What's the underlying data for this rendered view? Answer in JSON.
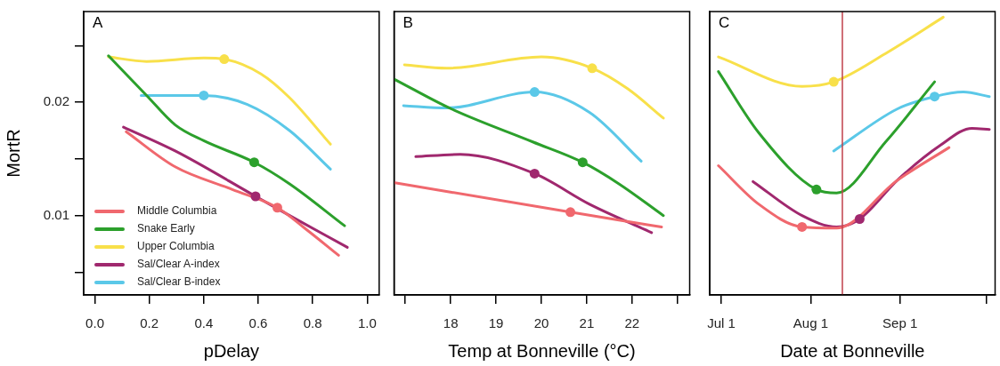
{
  "chart_data": [
    {
      "type": "line",
      "title": "A",
      "xlabel": "pDelay",
      "ylabel": "MortR",
      "xlim": [
        -0.041,
        1.044
      ],
      "xticks": [
        {
          "value": 0,
          "label": "0.0"
        },
        0.2,
        0.4,
        0.6,
        0.8,
        {
          "value": 1,
          "label": "1.0"
        }
      ],
      "ylim": [
        0.003,
        0.028
      ],
      "yticks": [
        {
          "value": 0.005,
          "label": null
        },
        0.01,
        {
          "value": 0.015,
          "label": null
        },
        0.02,
        {
          "value": 0.025,
          "label": null
        }
      ],
      "legend": "bottom left",
      "series": [
        {
          "name": "Middle Columbia",
          "color": "#f0686e",
          "x": [
            0.115,
            0.295,
            0.505,
            0.67,
            0.77,
            0.895
          ],
          "values": [
            0.0174,
            0.0143,
            0.0123,
            0.0107,
            0.0089,
            0.0065
          ]
        },
        {
          "name": "Snake Early",
          "color": "#2ca02c",
          "x": [
            0.05,
            0.19,
            0.295,
            0.4,
            0.585,
            0.715,
            0.917
          ],
          "values": [
            0.0241,
            0.0206,
            0.018,
            0.0166,
            0.0147,
            0.0128,
            0.0091
          ]
        },
        {
          "name": "Upper Columbia",
          "color": "#f8e04a",
          "x": [
            0.05,
            0.19,
            0.4,
            0.475,
            0.61,
            0.715,
            0.865
          ],
          "values": [
            0.024,
            0.0236,
            0.0239,
            0.0238,
            0.0225,
            0.0204,
            0.0163
          ]
        },
        {
          "name": "Sal/Clear A-index",
          "color": "#a0286e",
          "x": [
            0.105,
            0.295,
            0.59,
            0.715,
            0.927
          ],
          "values": [
            0.0178,
            0.0157,
            0.0117,
            0.01,
            0.0072
          ]
        },
        {
          "name": "Sal/Clear B-index",
          "color": "#5bc8e8",
          "x": [
            0.17,
            0.4,
            0.56,
            0.715,
            0.865
          ],
          "values": [
            0.0206,
            0.0206,
            0.0198,
            0.0175,
            0.0141
          ]
        },
        {
          "type": "scatter",
          "color": "#f0686e",
          "x": [
            0.67
          ],
          "values": [
            0.0107
          ]
        },
        {
          "type": "scatter",
          "color": "#2ca02c",
          "x": [
            0.585
          ],
          "values": [
            0.0147
          ]
        },
        {
          "type": "scatter",
          "color": "#f8e04a",
          "x": [
            0.475
          ],
          "values": [
            0.0238
          ]
        },
        {
          "type": "scatter",
          "color": "#a0286e",
          "x": [
            0.59
          ],
          "values": [
            0.0117
          ]
        },
        {
          "type": "scatter",
          "color": "#5bc8e8",
          "x": [
            0.4
          ],
          "values": [
            0.0206
          ]
        }
      ]
    },
    {
      "type": "line",
      "title": "B",
      "xlabel": "Temp at Bonneville (°C)",
      "xlim": [
        16.75,
        23.27
      ],
      "xticks": [
        {
          "value": 17,
          "label": null
        },
        18,
        19,
        20,
        21,
        22,
        {
          "value": 23,
          "label": null
        }
      ],
      "ylim": [
        0.003,
        0.028
      ],
      "tick_labels": "x",
      "series": [
        {
          "color": "#f0686e",
          "x": [
            16.77,
            20.64,
            21.71,
            22.65
          ],
          "values": [
            0.0129,
            0.0103,
            0.0096,
            0.009
          ]
        },
        {
          "color": "#2ca02c",
          "x": [
            16.77,
            18.02,
            19.81,
            20.91,
            21.71,
            22.69
          ],
          "values": [
            0.022,
            0.0194,
            0.0165,
            0.0147,
            0.0128,
            0.01
          ]
        },
        {
          "color": "#f8e04a",
          "x": [
            16.98,
            17.91,
            20.0,
            21.12,
            21.9,
            22.69
          ],
          "values": [
            0.0233,
            0.023,
            0.024,
            0.023,
            0.0212,
            0.0186
          ]
        },
        {
          "color": "#a0286e",
          "x": [
            17.23,
            18.21,
            19.85,
            21.06,
            22.43
          ],
          "values": [
            0.0152,
            0.0154,
            0.0137,
            0.011,
            0.0085
          ]
        },
        {
          "color": "#5bc8e8",
          "x": [
            16.96,
            17.91,
            19.85,
            21.06,
            22.2
          ],
          "values": [
            0.0197,
            0.0195,
            0.0209,
            0.0191,
            0.0148
          ]
        },
        {
          "type": "scatter",
          "color": "#f0686e",
          "x": [
            20.64
          ],
          "values": [
            0.0103
          ]
        },
        {
          "type": "scatter",
          "color": "#2ca02c",
          "x": [
            20.91
          ],
          "values": [
            0.0147
          ]
        },
        {
          "type": "scatter",
          "color": "#f8e04a",
          "x": [
            21.12
          ],
          "values": [
            0.023
          ]
        },
        {
          "type": "scatter",
          "color": "#a0286e",
          "x": [
            19.85
          ],
          "values": [
            0.0137
          ]
        },
        {
          "type": "scatter",
          "color": "#5bc8e8",
          "x": [
            19.85
          ],
          "values": [
            0.0209
          ]
        }
      ]
    },
    {
      "type": "line",
      "title": "C",
      "xlabel": "Date at Bonneville",
      "xlim": [
        "--06-27",
        "--10-04"
      ],
      "xticks": [
        {
          "value": "--07-01",
          "label": "Jul 1"
        },
        {
          "value": "--08-01",
          "label": "Aug 1"
        },
        {
          "value": "--09-01",
          "label": "Sep 1"
        },
        {
          "value": "--10-01",
          "label": null
        }
      ],
      "ylim": [
        0.003,
        0.028
      ],
      "tick_labels": "x",
      "ref_lines": [
        {
          "axis": "x",
          "value": "--08-12",
          "color": "#c0404a"
        }
      ],
      "series": [
        {
          "color": "#f0686e",
          "x": [
            "--06-30",
            "--07-14",
            "--07-29",
            "--08-10",
            "--08-31",
            "--09-18"
          ],
          "values": [
            0.0144,
            0.011,
            0.009,
            0.0089,
            0.0131,
            0.016
          ]
        },
        {
          "color": "#2ca02c",
          "x": [
            "--06-30",
            "--07-14",
            "--08-03",
            "--08-10",
            "--08-27",
            "--09-13"
          ],
          "values": [
            0.0227,
            0.0173,
            0.0123,
            0.012,
            0.0165,
            0.0218
          ]
        },
        {
          "color": "#f8e04a",
          "x": [
            "--06-30",
            "--07-29",
            "--08-09",
            "--08-27",
            "--09-16"
          ],
          "values": [
            0.024,
            0.0214,
            0.0218,
            0.0243,
            0.0275
          ]
        },
        {
          "color": "#a0286e",
          "x": [
            "--07-12",
            "--07-29",
            "--08-10",
            "--08-18",
            "--08-31",
            "--09-15",
            "--09-26",
            "--10-02"
          ],
          "values": [
            0.013,
            0.01,
            0.009,
            0.0097,
            0.0131,
            0.0162,
            0.0177,
            0.0176
          ]
        },
        {
          "color": "#5bc8e8",
          "x": [
            "--08-09",
            "--08-31",
            "--09-13",
            "--09-23",
            "--10-02"
          ],
          "values": [
            0.0157,
            0.0194,
            0.0205,
            0.0209,
            0.0205
          ]
        },
        {
          "type": "scatter",
          "color": "#f0686e",
          "x": [
            "--07-29"
          ],
          "values": [
            0.009
          ]
        },
        {
          "type": "scatter",
          "color": "#2ca02c",
          "x": [
            "--08-03"
          ],
          "values": [
            0.0123
          ]
        },
        {
          "type": "scatter",
          "color": "#f8e04a",
          "x": [
            "--08-09"
          ],
          "values": [
            0.0218
          ]
        },
        {
          "type": "scatter",
          "color": "#a0286e",
          "x": [
            "--08-18"
          ],
          "values": [
            0.0097
          ]
        },
        {
          "type": "scatter",
          "color": "#5bc8e8",
          "x": [
            "--09-13"
          ],
          "values": [
            0.0205
          ]
        }
      ]
    }
  ]
}
